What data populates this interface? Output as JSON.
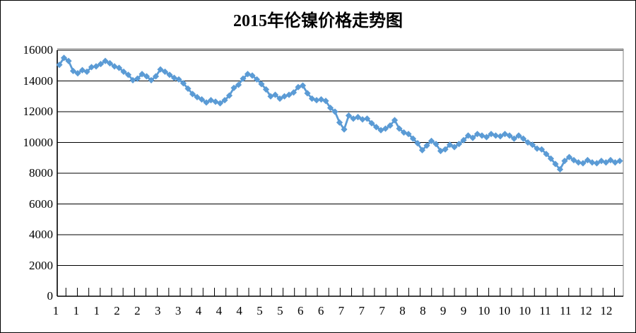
{
  "chart_data": {
    "type": "line",
    "title": "2015年伦镍价格走势图",
    "xlabel": "",
    "ylabel": "",
    "legend": "none",
    "grid": "horizontal",
    "ylim": [
      0,
      16000
    ],
    "y_ticks": [
      0,
      2000,
      4000,
      6000,
      8000,
      10000,
      12000,
      14000,
      16000
    ],
    "x_labels": [
      "1",
      "1",
      "1",
      "2",
      "2",
      "3",
      "3",
      "4",
      "4",
      "4",
      "5",
      "5",
      "6",
      "6",
      "7",
      "7",
      "7",
      "8",
      "8",
      "9",
      "9",
      "10",
      "10",
      "10",
      "11",
      "11",
      "12",
      "12"
    ],
    "series": [
      {
        "marker": "diamond",
        "color": "#5B9BD5",
        "values": [
          15050,
          15500,
          15300,
          14650,
          14500,
          14700,
          14600,
          14900,
          14950,
          15100,
          15300,
          15150,
          14950,
          14850,
          14600,
          14400,
          14050,
          14150,
          14450,
          14300,
          14050,
          14300,
          14750,
          14600,
          14400,
          14200,
          14100,
          13850,
          13500,
          13150,
          12950,
          12800,
          12600,
          12750,
          12650,
          12550,
          12750,
          13050,
          13550,
          13750,
          14150,
          14450,
          14350,
          14100,
          13800,
          13450,
          13000,
          13100,
          12850,
          13000,
          13100,
          13250,
          13600,
          13700,
          13200,
          12850,
          12750,
          12800,
          12700,
          12250,
          12000,
          11300,
          10850,
          11750,
          11550,
          11650,
          11500,
          11550,
          11250,
          11000,
          10800,
          10900,
          11100,
          11450,
          10900,
          10650,
          10550,
          10250,
          9950,
          9500,
          9800,
          10100,
          9900,
          9450,
          9550,
          9850,
          9700,
          9900,
          10150,
          10450,
          10300,
          10550,
          10450,
          10350,
          10550,
          10450,
          10400,
          10550,
          10450,
          10250,
          10450,
          10250,
          10000,
          9850,
          9600,
          9550,
          9250,
          8950,
          8600,
          8250,
          8800,
          9050,
          8850,
          8700,
          8650,
          8850,
          8700,
          8650,
          8800,
          8700,
          8850,
          8700,
          8800
        ]
      }
    ],
    "colors": {
      "series_blue": "#5B9BD5",
      "gridline": "#000000",
      "plot_border": "#808080",
      "text": "#000000"
    }
  }
}
